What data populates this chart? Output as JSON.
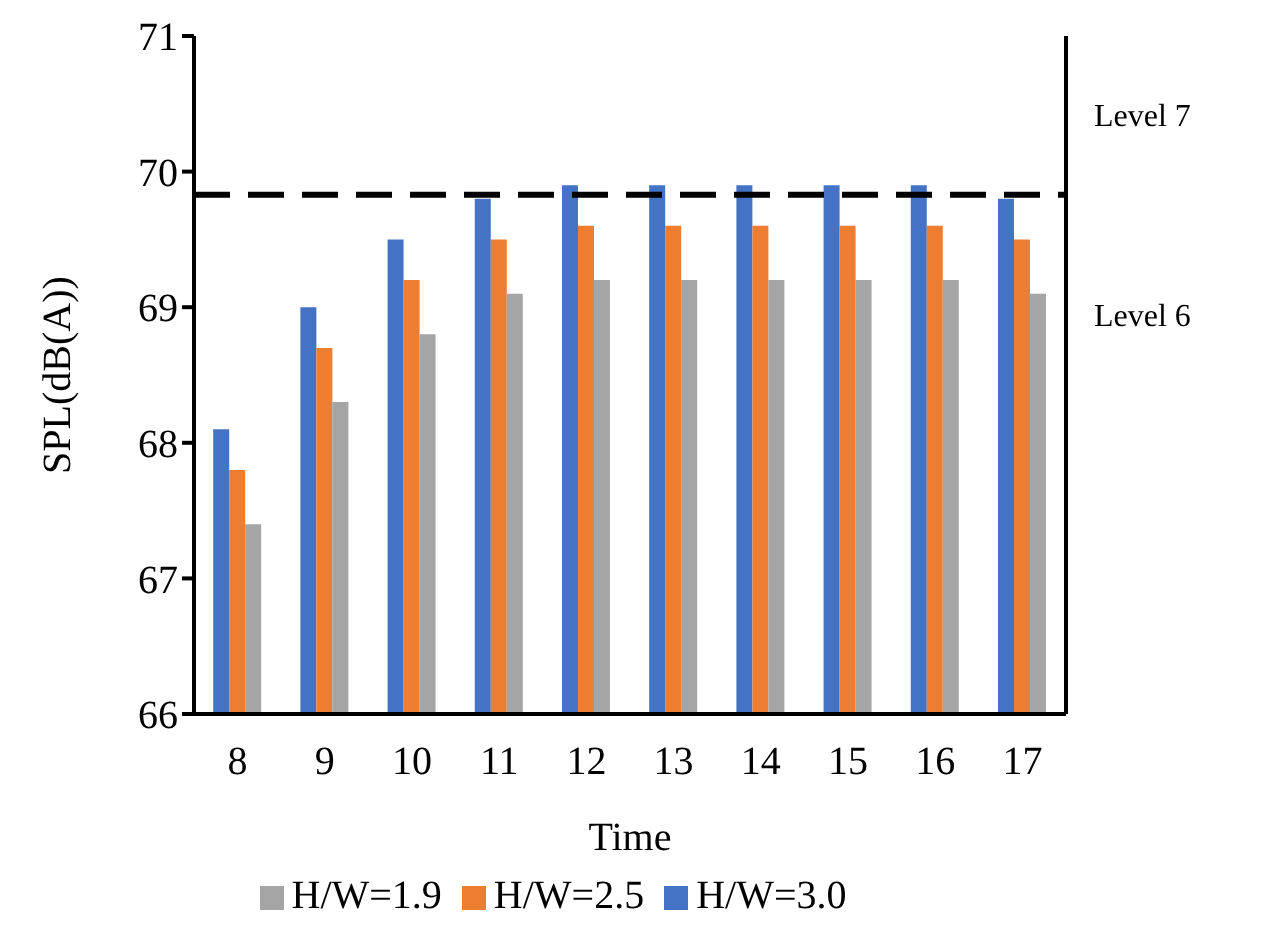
{
  "chart_data": {
    "type": "bar",
    "xlabel": "Time",
    "ylabel": "SPL(dB(A))",
    "categories": [
      "8",
      "9",
      "10",
      "11",
      "12",
      "13",
      "14",
      "15",
      "16",
      "17"
    ],
    "series": [
      {
        "name": "H/W=3.0",
        "color": "#4472c4",
        "values": [
          68.1,
          69.0,
          69.5,
          69.8,
          69.9,
          69.9,
          69.9,
          69.9,
          69.9,
          69.8
        ]
      },
      {
        "name": "H/W=2.5",
        "color": "#ed7d31",
        "values": [
          67.8,
          68.7,
          69.2,
          69.5,
          69.6,
          69.6,
          69.6,
          69.6,
          69.6,
          69.5
        ]
      },
      {
        "name": "H/W=1.9",
        "color": "#a5a5a5",
        "values": [
          67.4,
          68.3,
          68.8,
          69.1,
          69.2,
          69.2,
          69.2,
          69.2,
          69.2,
          69.1
        ]
      }
    ],
    "ylim": [
      66,
      71
    ],
    "yticks": [
      66,
      67,
      68,
      69,
      70,
      71
    ],
    "grid": false,
    "legend": "bottom",
    "ref_lines": [
      {
        "axis": "y",
        "value": 69.83,
        "color": "#000000",
        "line_style": "dashed"
      }
    ],
    "annotations": [
      "Level 7",
      "Level 6"
    ]
  }
}
